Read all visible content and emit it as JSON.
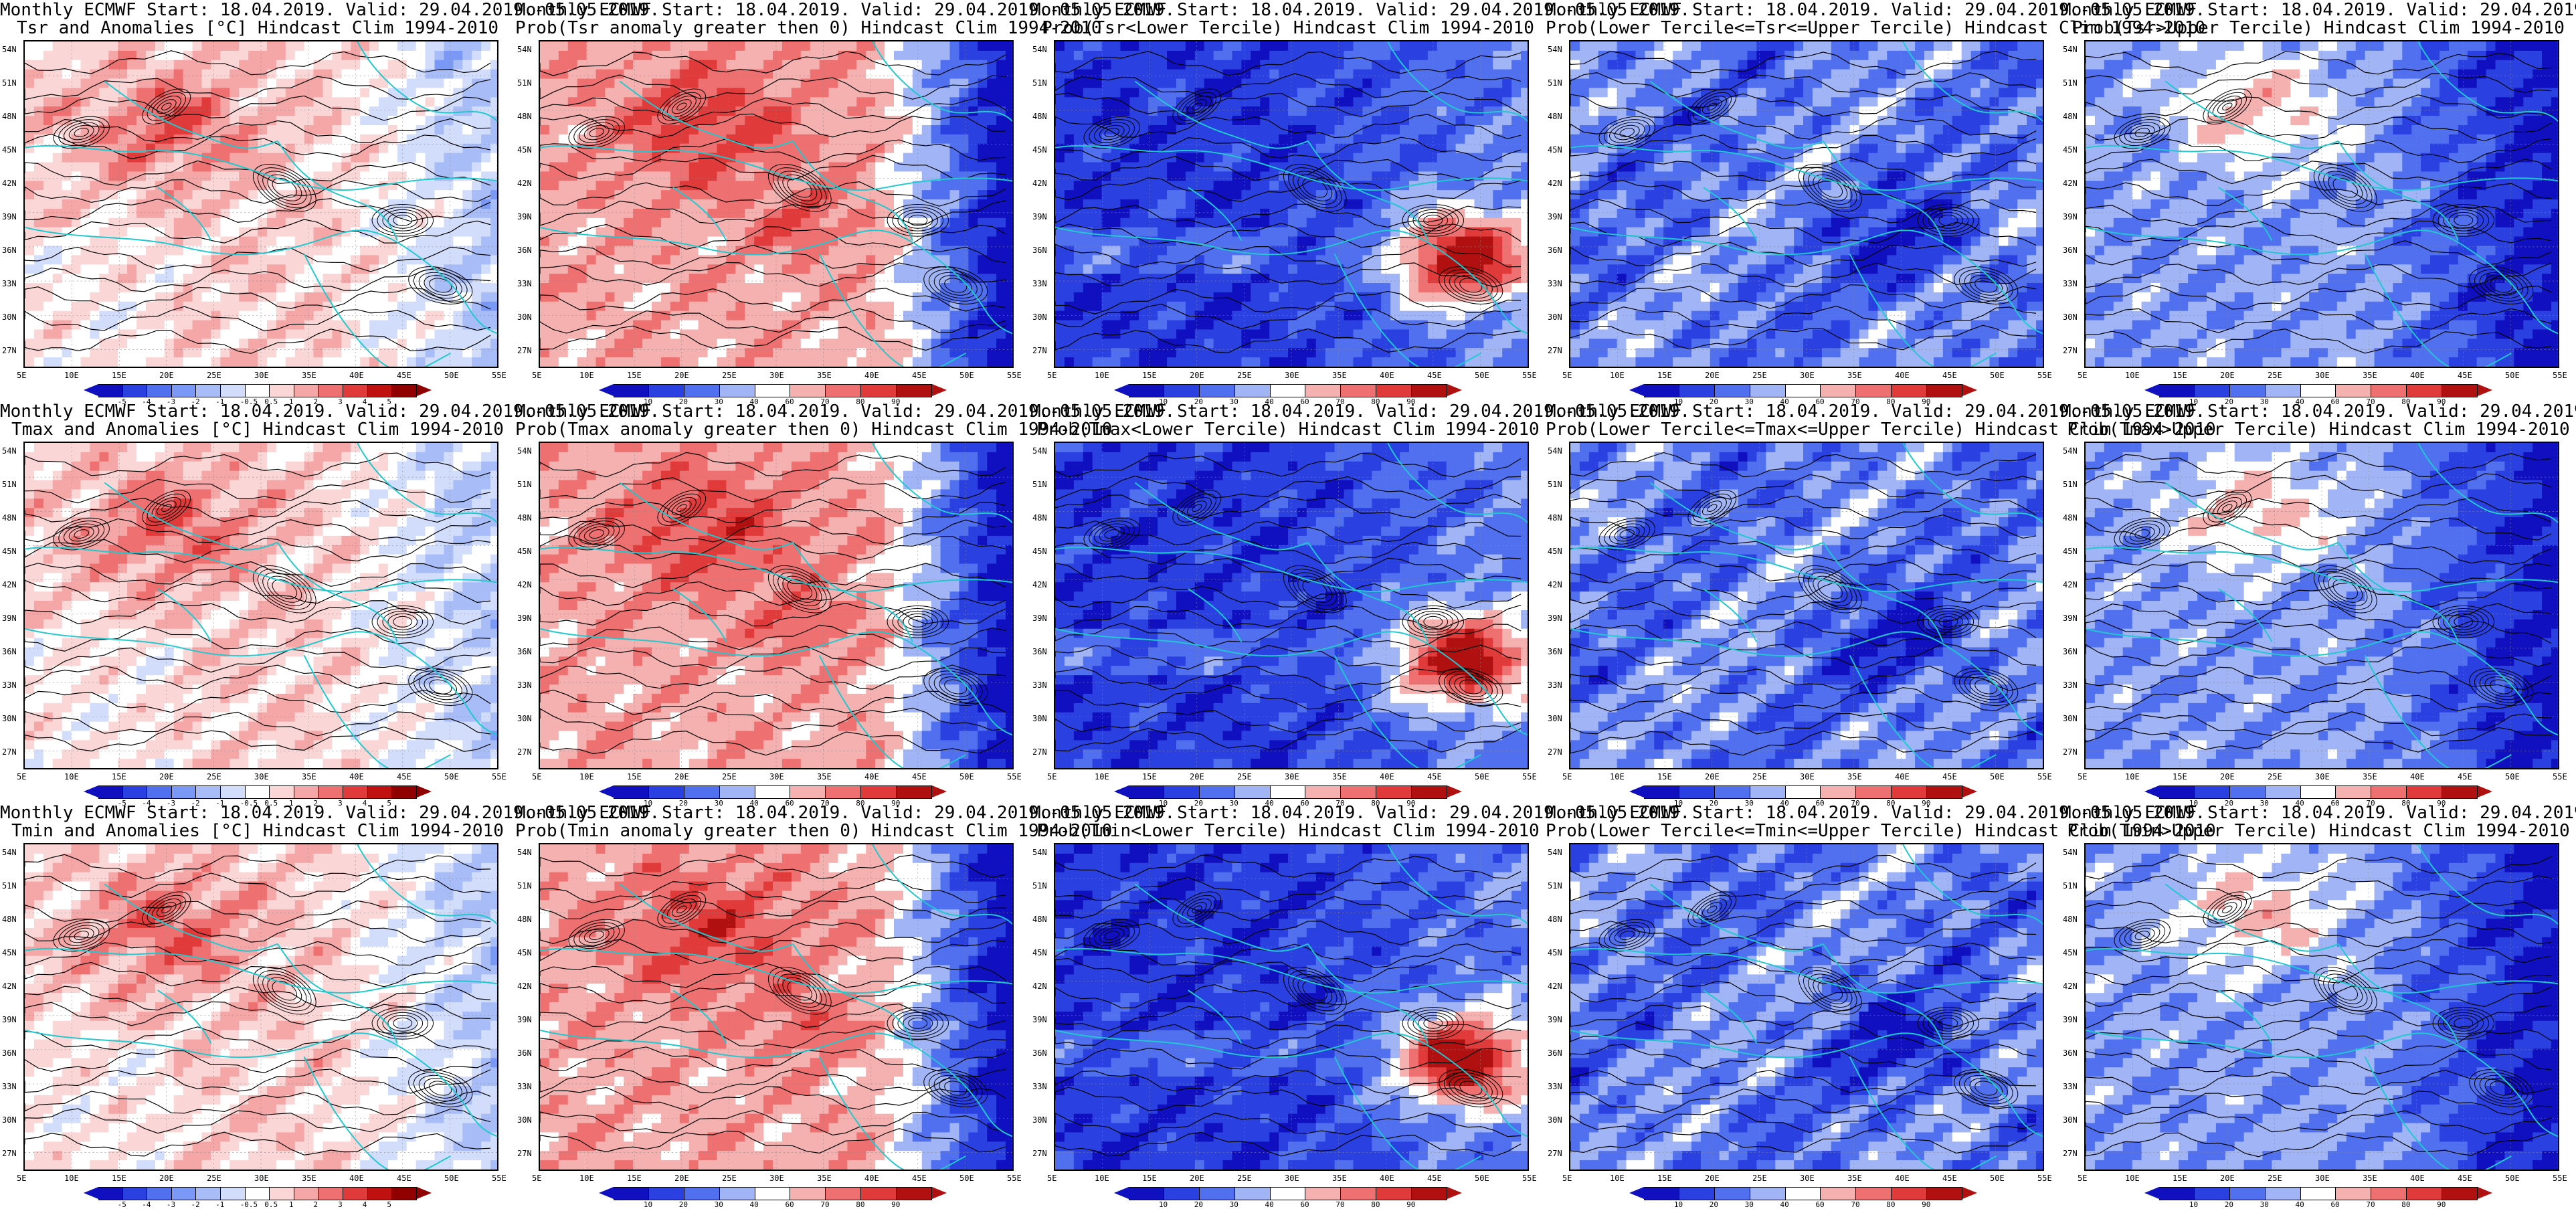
{
  "title_prefix": "Monthly ECMWF Start: 18.04.2019. Valid: 29.04.2019.-05.05.2019.",
  "panels": [
    {
      "line1": "Monthly ECMWF Start: 18.04.2019. Valid: 29.04.2019.-05.05.2019.",
      "line2": "Tsr and Anomalies [°C] Hindcast Clim 1994-2010",
      "scheme": "anom"
    },
    {
      "line1": "Monthly ECMWF Start: 18.04.2019. Valid: 29.04.2019.-05.05.2019.",
      "line2": "Prob(Tsr anomaly greater then 0) Hindcast Clim 1994-2010",
      "scheme": "prob0"
    },
    {
      "line1": "Monthly ECMWF Start: 18.04.2019. Valid: 29.04.2019.-05.05.2019.",
      "line2": "Prob(Tsr<Lower Tercile) Hindcast Clim 1994-2010",
      "scheme": "lower"
    },
    {
      "line1": "Monthly ECMWF Start: 18.04.2019. Valid: 29.04.2019.-05.05.2019.",
      "line2": "Prob(Lower Tercile<=Tsr<=Upper Tercile) Hindcast Clim 1994-2010",
      "scheme": "middle"
    },
    {
      "line1": "Monthly ECMWF Start: 18.04.2019. Valid: 29.04.2019.-05.05.2019.",
      "line2": "Prob(Tsr>Upper Tercile) Hindcast Clim 1994-2010",
      "scheme": "upper"
    },
    {
      "line1": "Monthly ECMWF Start: 18.04.2019. Valid: 29.04.2019.-05.05.2019.",
      "line2": "Tmax and Anomalies [°C] Hindcast Clim 1994-2010",
      "scheme": "anom"
    },
    {
      "line1": "Monthly ECMWF Start: 18.04.2019. Valid: 29.04.2019.-05.05.2019.",
      "line2": "Prob(Tmax anomaly greater then 0) Hindcast Clim 1994-2010",
      "scheme": "prob0"
    },
    {
      "line1": "Monthly ECMWF Start: 18.04.2019. Valid: 29.04.2019.-05.05.2019.",
      "line2": "Prob(Tmax<Lower Tercile) Hindcast Clim 1994-2010",
      "scheme": "lower"
    },
    {
      "line1": "Monthly ECMWF Start: 18.04.2019. Valid: 29.04.2019.-05.05.2019.",
      "line2": "Prob(Lower Tercile<=Tmax<=Upper Tercile) Hindcast Clim 1994-2010",
      "scheme": "middle"
    },
    {
      "line1": "Monthly ECMWF Start: 18.04.2019. Valid: 29.04.2019.-05.05.2019.",
      "line2": "Prob(Tmax>Upper Tercile) Hindcast Clim 1994-2010",
      "scheme": "upper"
    },
    {
      "line1": "Monthly ECMWF Start: 18.04.2019. Valid: 29.04.2019.-05.05.2019.",
      "line2": "Tmin and Anomalies [°C] Hindcast Clim 1994-2010",
      "scheme": "anom"
    },
    {
      "line1": "Monthly ECMWF Start: 18.04.2019. Valid: 29.04.2019.-05.05.2019.",
      "line2": "Prob(Tmin anomaly greater then 0) Hindcast Clim 1994-2010",
      "scheme": "prob0"
    },
    {
      "line1": "Monthly ECMWF Start: 18.04.2019. Valid: 29.04.2019.-05.05.2019.",
      "line2": "Prob(Tmin<Lower Tercile) Hindcast Clim 1994-2010",
      "scheme": "lower"
    },
    {
      "line1": "Monthly ECMWF Start: 18.04.2019. Valid: 29.04.2019.-05.05.2019.",
      "line2": "Prob(Lower Tercile<=Tmin<=Upper Tercile) Hindcast Clim 1994-2010",
      "scheme": "middle"
    },
    {
      "line1": "Monthly ECMWF Start: 18.04.2019. Valid: 29.04.2019.-05.05.2019.",
      "line2": "Prob(Tmin>Upper Tercile) Hindcast Clim 1994-2010",
      "scheme": "upper"
    }
  ],
  "lat_labels": [
    "54N",
    "51N",
    "48N",
    "45N",
    "42N",
    "39N",
    "36N",
    "33N",
    "30N",
    "27N"
  ],
  "lon_labels": [
    "5E",
    "10E",
    "15E",
    "20E",
    "25E",
    "30E",
    "35E",
    "40E",
    "45E",
    "50E",
    "55E"
  ],
  "colorbars": {
    "anom": {
      "ticks": [
        "-5",
        "-4",
        "-3",
        "-2",
        "-1",
        "-0.5",
        "0.5",
        "1",
        "2",
        "3",
        "4",
        "5"
      ],
      "colors": [
        "#1010c0",
        "#2a40e0",
        "#5070f0",
        "#7a98f5",
        "#a8bcf8",
        "#d2dcfb",
        "#ffffff",
        "#fbd6d6",
        "#f5a6a6",
        "#ee7070",
        "#e03a3a",
        "#c01010",
        "#900000"
      ]
    },
    "prob0": {
      "ticks": [
        "10",
        "20",
        "30",
        "40",
        "60",
        "70",
        "80",
        "90"
      ],
      "colors": [
        "#1010c0",
        "#2a40e0",
        "#5070f0",
        "#a0b4f6",
        "#ffffff",
        "#f5b0b0",
        "#ee7070",
        "#e03a3a",
        "#b01010"
      ]
    },
    "lower": {
      "ticks": [
        "10",
        "20",
        "30",
        "40",
        "60",
        "70",
        "80",
        "90"
      ],
      "colors": [
        "#1010c0",
        "#2a40e0",
        "#5070f0",
        "#a0b4f6",
        "#ffffff",
        "#f5b0b0",
        "#ee7070",
        "#e03a3a",
        "#b01010"
      ]
    },
    "middle": {
      "ticks": [
        "10",
        "20",
        "30",
        "40",
        "60",
        "70",
        "80",
        "90"
      ],
      "colors": [
        "#1010c0",
        "#2a40e0",
        "#5070f0",
        "#a0b4f6",
        "#ffffff",
        "#f5b0b0",
        "#ee7070",
        "#e03a3a",
        "#b01010"
      ]
    },
    "upper": {
      "ticks": [
        "10",
        "20",
        "30",
        "40",
        "60",
        "70",
        "80",
        "90"
      ],
      "colors": [
        "#1010c0",
        "#2a40e0",
        "#5070f0",
        "#a0b4f6",
        "#ffffff",
        "#f5b0b0",
        "#ee7070",
        "#e03a3a",
        "#b01010"
      ]
    }
  },
  "colors": {
    "coast": "#20c8d0",
    "contour": "#000000",
    "frame": "#000000"
  }
}
